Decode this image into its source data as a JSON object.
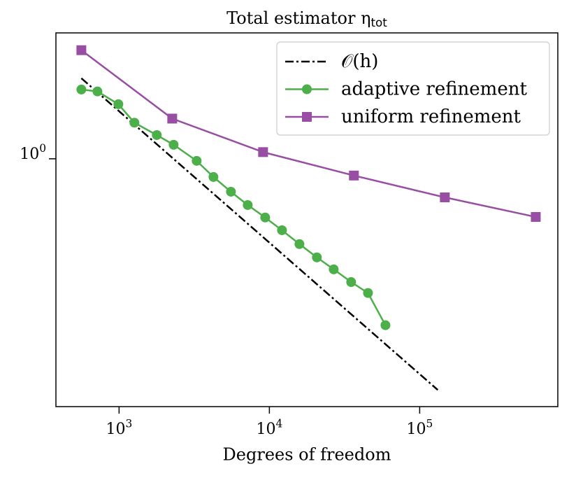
{
  "chart_data": {
    "type": "line",
    "title": "Total estimator η_tot",
    "xlabel": "Degrees of freedom",
    "xscale": "log",
    "yscale": "log",
    "xlim": [
      380,
      830000
    ],
    "ylim": [
      0.115,
      3.0
    ],
    "xticks": [
      {
        "value": 1000,
        "label": "10^3"
      },
      {
        "value": 10000,
        "label": "10^4"
      },
      {
        "value": 100000,
        "label": "10^5"
      }
    ],
    "yticks": [
      {
        "value": 1,
        "label": "10^0"
      }
    ],
    "legend": "upper right",
    "series": [
      {
        "name": "𝒪(h)",
        "color": "#000000",
        "dash": "dashdot",
        "marker": "none",
        "x": [
          561,
          132000
        ],
        "values": [
          2.02,
          0.133
        ]
      },
      {
        "name": "adaptive refinement",
        "color": "#4daf4a",
        "dash": "solid",
        "marker": "circle",
        "x": [
          561,
          718,
          989,
          1265,
          1782,
          2306,
          3283,
          4245,
          5550,
          7175,
          9380,
          12130,
          15850,
          20700,
          26800,
          35000,
          45300,
          59200
        ],
        "values": [
          1.83,
          1.8,
          1.61,
          1.37,
          1.23,
          1.13,
          0.982,
          0.853,
          0.75,
          0.668,
          0.599,
          0.536,
          0.475,
          0.423,
          0.381,
          0.341,
          0.31,
          0.234
        ]
      },
      {
        "name": "uniform refinement",
        "color": "#984ea3",
        "dash": "solid",
        "marker": "square",
        "x": [
          561,
          2257,
          9080,
          36500,
          147000,
          592000
        ],
        "values": [
          2.58,
          1.42,
          1.06,
          0.864,
          0.714,
          0.602
        ]
      }
    ]
  }
}
